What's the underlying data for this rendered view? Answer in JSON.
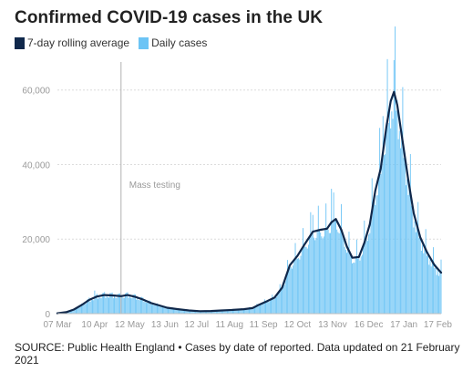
{
  "title": "Confirmed COVID-19 cases in the UK",
  "legend": [
    {
      "label": "7-day rolling average",
      "color": "#10284b"
    },
    {
      "label": "Daily cases",
      "color": "#6cc4f5"
    }
  ],
  "source": "SOURCE: Public Health England • Cases by date of reported. Data updated on 21 February 2021",
  "chart_data": {
    "type": "bar",
    "xlabel": "",
    "ylabel": "",
    "ylim": [
      0,
      68000
    ],
    "yticks": [
      0,
      20000,
      40000,
      60000
    ],
    "ytick_labels": [
      "0",
      "20,000",
      "40,000",
      "60,000"
    ],
    "x_range": [
      "2020-03-07",
      "2021-02-20"
    ],
    "xticks": [
      "2020-03-07",
      "2020-04-10",
      "2020-05-12",
      "2020-06-13",
      "2020-07-12",
      "2020-08-11",
      "2020-09-11",
      "2020-10-12",
      "2020-11-13",
      "2020-12-16",
      "2021-01-17",
      "2021-02-17"
    ],
    "xtick_labels": [
      "07 Mar",
      "10 Apr",
      "12 May",
      "13 Jun",
      "12 Jul",
      "11 Aug",
      "11 Sep",
      "12 Oct",
      "13 Nov",
      "16 Dec",
      "17 Jan",
      "17 Feb"
    ],
    "grid": true,
    "annotation": {
      "date": "2020-05-04",
      "label": "Mass testing"
    },
    "series": [
      {
        "name": "7-day rolling average",
        "kind": "line",
        "color": "#10284b",
        "points": [
          [
            "2020-03-07",
            100
          ],
          [
            "2020-03-15",
            400
          ],
          [
            "2020-03-22",
            1100
          ],
          [
            "2020-03-29",
            2300
          ],
          [
            "2020-04-05",
            3700
          ],
          [
            "2020-04-12",
            4600
          ],
          [
            "2020-04-19",
            5000
          ],
          [
            "2020-04-26",
            4900
          ],
          [
            "2020-05-04",
            4700
          ],
          [
            "2020-05-10",
            5000
          ],
          [
            "2020-05-17",
            4500
          ],
          [
            "2020-05-24",
            3800
          ],
          [
            "2020-06-01",
            2800
          ],
          [
            "2020-06-08",
            2200
          ],
          [
            "2020-06-15",
            1600
          ],
          [
            "2020-06-25",
            1200
          ],
          [
            "2020-07-05",
            850
          ],
          [
            "2020-07-15",
            650
          ],
          [
            "2020-07-25",
            700
          ],
          [
            "2020-08-04",
            850
          ],
          [
            "2020-08-14",
            1000
          ],
          [
            "2020-08-24",
            1200
          ],
          [
            "2020-09-01",
            1500
          ],
          [
            "2020-09-07",
            2400
          ],
          [
            "2020-09-14",
            3300
          ],
          [
            "2020-09-21",
            4300
          ],
          [
            "2020-09-28",
            7000
          ],
          [
            "2020-10-05",
            13000
          ],
          [
            "2020-10-12",
            15500
          ],
          [
            "2020-10-19",
            18800
          ],
          [
            "2020-10-26",
            22000
          ],
          [
            "2020-11-02",
            22500
          ],
          [
            "2020-11-08",
            22800
          ],
          [
            "2020-11-12",
            24500
          ],
          [
            "2020-11-16",
            25400
          ],
          [
            "2020-11-21",
            22500
          ],
          [
            "2020-11-26",
            18000
          ],
          [
            "2020-12-01",
            15000
          ],
          [
            "2020-12-07",
            15200
          ],
          [
            "2020-12-12",
            19000
          ],
          [
            "2020-12-17",
            24000
          ],
          [
            "2020-12-22",
            33000
          ],
          [
            "2020-12-27",
            39000
          ],
          [
            "2021-01-01",
            50000
          ],
          [
            "2021-01-05",
            57000
          ],
          [
            "2021-01-08",
            59500
          ],
          [
            "2021-01-11",
            56000
          ],
          [
            "2021-01-16",
            46000
          ],
          [
            "2021-01-21",
            36000
          ],
          [
            "2021-01-26",
            27000
          ],
          [
            "2021-02-01",
            20500
          ],
          [
            "2021-02-07",
            16500
          ],
          [
            "2021-02-14",
            13000
          ],
          [
            "2021-02-20",
            11000
          ]
        ]
      },
      {
        "name": "Daily cases",
        "kind": "bar",
        "color": "#6cc4f5",
        "note": "Daily values fluctuate around the rolling average; peak daily value about 68,000 in early January 2021.",
        "peaks": [
          [
            "2020-04-10",
            6200
          ],
          [
            "2020-10-26",
            26500
          ],
          [
            "2020-11-12",
            33500
          ],
          [
            "2020-12-29",
            53000
          ],
          [
            "2021-01-08",
            68000
          ]
        ]
      }
    ]
  }
}
